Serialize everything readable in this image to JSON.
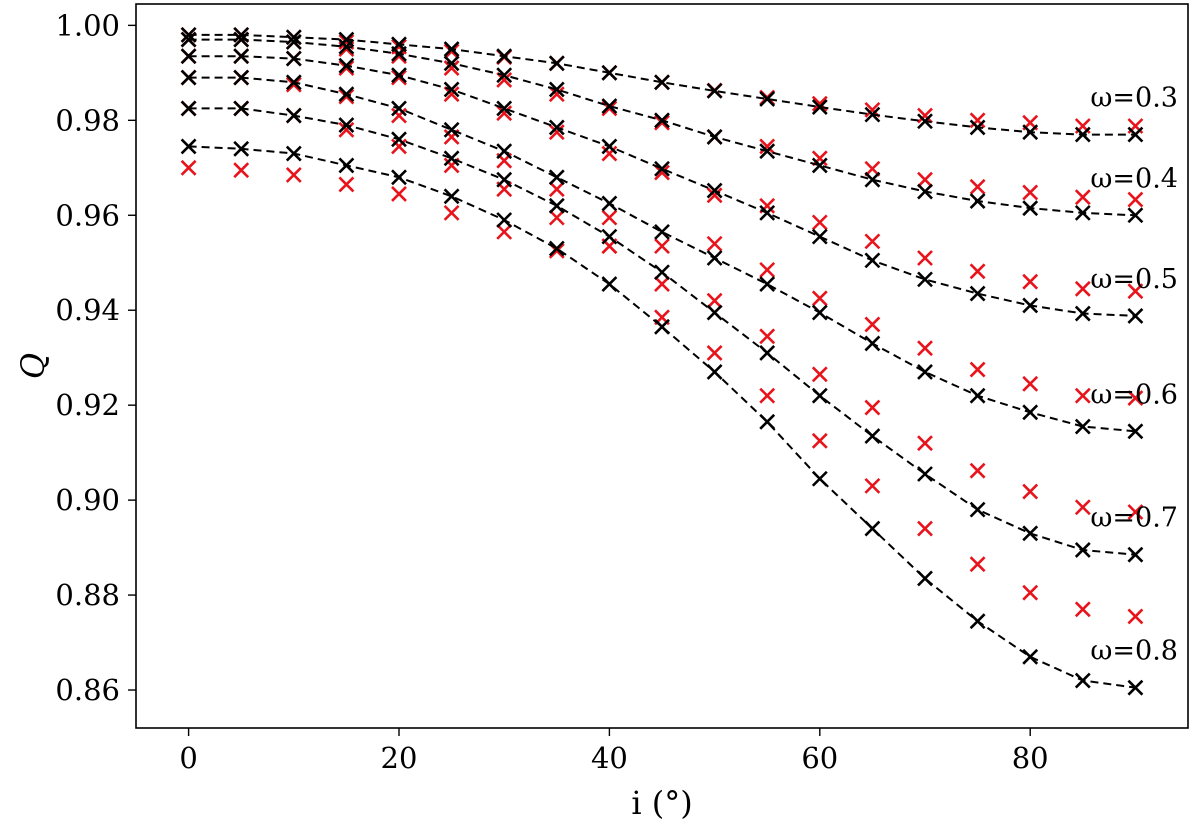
{
  "chart_data": {
    "type": "scatter",
    "title": "",
    "xlabel": "i (°)",
    "ylabel": "Q",
    "xlim": [
      -5,
      95
    ],
    "ylim": [
      0.852,
      1.0045
    ],
    "xticks": [
      "0",
      "20",
      "40",
      "60",
      "80"
    ],
    "yticks": [
      "0.86",
      "0.88",
      "0.90",
      "0.92",
      "0.94",
      "0.96",
      "0.98",
      "1.00"
    ],
    "grid": false,
    "x": [
      0,
      5,
      10,
      15,
      20,
      25,
      30,
      35,
      40,
      45,
      50,
      55,
      60,
      65,
      70,
      75,
      80,
      85,
      90
    ],
    "colors": {
      "model": "#000000",
      "reference": "#e8141c",
      "line": "#000000"
    },
    "markers": "x",
    "line_style": "dashed",
    "series": [
      {
        "name": "ω=0.3",
        "values": [
          0.998,
          0.998,
          0.9975,
          0.997,
          0.996,
          0.995,
          0.9935,
          0.992,
          0.99,
          0.988,
          0.9862,
          0.9845,
          0.9828,
          0.9812,
          0.9798,
          0.9785,
          0.9775,
          0.977,
          0.977
        ],
        "reference": [
          0.998,
          0.998,
          0.9975,
          0.9965,
          0.9955,
          0.9945,
          0.9933,
          0.992,
          0.99,
          0.988,
          0.9863,
          0.9848,
          0.9835,
          0.9822,
          0.981,
          0.98,
          0.9795,
          0.9788,
          0.9788
        ]
      },
      {
        "name": "ω=0.4",
        "values": [
          0.997,
          0.997,
          0.9965,
          0.9955,
          0.994,
          0.992,
          0.9895,
          0.9865,
          0.983,
          0.98,
          0.9765,
          0.9735,
          0.9705,
          0.9675,
          0.965,
          0.963,
          0.9615,
          0.9605,
          0.96
        ],
        "reference": [
          0.997,
          0.997,
          0.9965,
          0.995,
          0.9935,
          0.991,
          0.9885,
          0.9855,
          0.9825,
          0.9795,
          0.9765,
          0.9745,
          0.972,
          0.9698,
          0.9675,
          0.966,
          0.9648,
          0.9638,
          0.9633
        ]
      },
      {
        "name": "ω=0.5",
        "values": [
          0.9935,
          0.9935,
          0.993,
          0.9915,
          0.9895,
          0.9865,
          0.9825,
          0.9785,
          0.9745,
          0.9698,
          0.9652,
          0.9605,
          0.9555,
          0.9505,
          0.9465,
          0.9435,
          0.941,
          0.9393,
          0.9388
        ],
        "reference": [
          0.9935,
          0.9935,
          0.993,
          0.991,
          0.989,
          0.9855,
          0.9815,
          0.9775,
          0.973,
          0.969,
          0.9642,
          0.962,
          0.9585,
          0.9545,
          0.951,
          0.9482,
          0.946,
          0.9445,
          0.944
        ]
      },
      {
        "name": "ω=0.6",
        "values": [
          0.989,
          0.989,
          0.988,
          0.9855,
          0.9825,
          0.978,
          0.9735,
          0.968,
          0.9625,
          0.9565,
          0.951,
          0.9455,
          0.9395,
          0.933,
          0.927,
          0.922,
          0.9185,
          0.9155,
          0.9145
        ],
        "reference": [
          0.989,
          0.989,
          0.9875,
          0.985,
          0.981,
          0.9765,
          0.9715,
          0.9655,
          0.9595,
          0.9535,
          0.954,
          0.9485,
          0.9425,
          0.937,
          0.932,
          0.9275,
          0.9245,
          0.922,
          0.9215
        ]
      },
      {
        "name": "ω=0.7",
        "values": [
          0.9825,
          0.9825,
          0.981,
          0.979,
          0.976,
          0.972,
          0.9675,
          0.962,
          0.9555,
          0.948,
          0.9395,
          0.931,
          0.922,
          0.9135,
          0.9055,
          0.898,
          0.893,
          0.8895,
          0.8885
        ],
        "reference": [
          0.9825,
          0.9825,
          0.981,
          0.978,
          0.9745,
          0.9705,
          0.9655,
          0.9595,
          0.9535,
          0.9455,
          0.942,
          0.9345,
          0.9265,
          0.9195,
          0.912,
          0.9062,
          0.9018,
          0.8985,
          0.8975
        ]
      },
      {
        "name": "ω=0.8",
        "values": [
          0.9745,
          0.974,
          0.973,
          0.9705,
          0.968,
          0.964,
          0.959,
          0.953,
          0.9455,
          0.9365,
          0.927,
          0.9165,
          0.9045,
          0.894,
          0.8835,
          0.8745,
          0.867,
          0.862,
          0.8605
        ],
        "reference": [
          0.97,
          0.9695,
          0.9685,
          0.9665,
          0.9645,
          0.9605,
          0.9565,
          0.9525,
          0.9535,
          0.9385,
          0.931,
          0.922,
          0.9125,
          0.903,
          0.894,
          0.8865,
          0.8805,
          0.877,
          0.8755
        ]
      }
    ]
  }
}
